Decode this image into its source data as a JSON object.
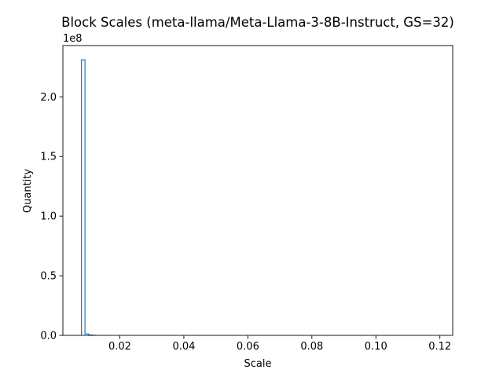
{
  "chart_data": {
    "type": "histogram",
    "title": "Block Scales (meta-llama/Meta-Llama-3-8B-Instruct, GS=32)",
    "xlabel": "Scale",
    "ylabel": "Quantity",
    "y_offset_label": "1e8",
    "xlim": [
      0.0022,
      0.124
    ],
    "ylim": [
      0,
      2.43
    ],
    "x_ticks": [
      {
        "value": 0.02,
        "label": "0.02"
      },
      {
        "value": 0.04,
        "label": "0.04"
      },
      {
        "value": 0.06,
        "label": "0.06"
      },
      {
        "value": 0.08,
        "label": "0.08"
      },
      {
        "value": 0.1,
        "label": "0.10"
      },
      {
        "value": 0.12,
        "label": "0.12"
      }
    ],
    "y_ticks": [
      {
        "value": 0.0,
        "label": "0.0"
      },
      {
        "value": 0.5,
        "label": "0.5"
      },
      {
        "value": 1.0,
        "label": "1.0"
      },
      {
        "value": 1.5,
        "label": "1.5"
      },
      {
        "value": 2.0,
        "label": "2.0"
      }
    ],
    "bins": {
      "edges": [
        0.008,
        0.0091,
        0.0102,
        0.0113,
        0.0124
      ],
      "counts": [
        2.31,
        0.012,
        0.004,
        0.001
      ]
    },
    "line_color": "#1f77b4",
    "grid": false,
    "legend": "none"
  }
}
